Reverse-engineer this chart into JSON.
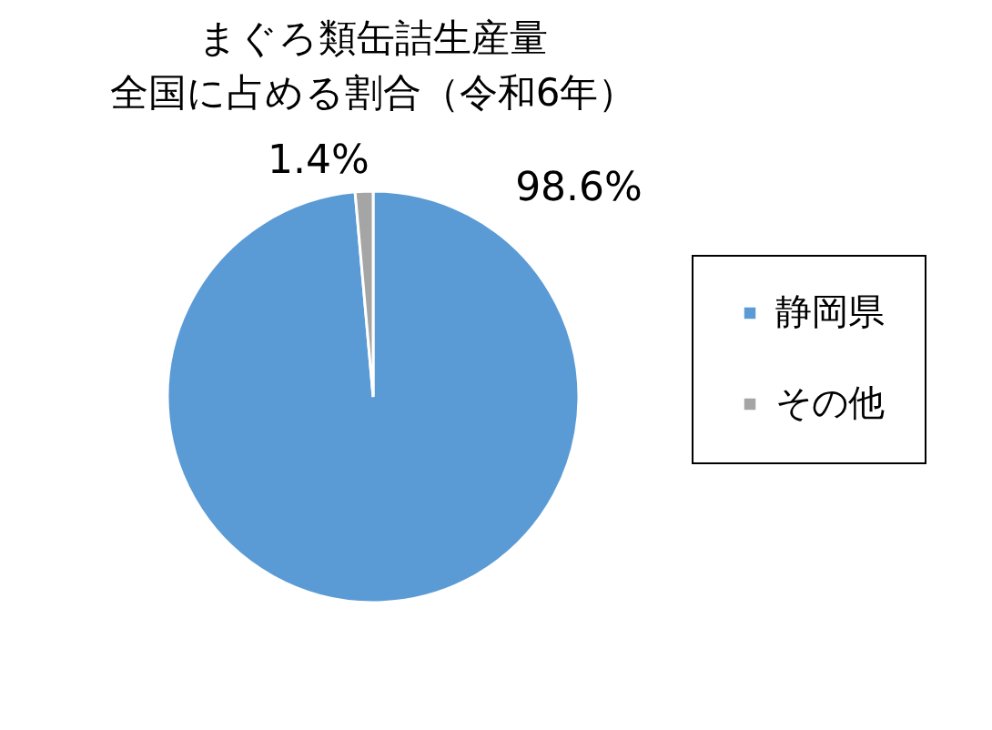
{
  "chart_data": {
    "type": "pie",
    "title": "まぐろ類缶詰生産量全国に占める割合（令和6年）",
    "categories": [
      "静岡県",
      "その他"
    ],
    "values": [
      98.6,
      1.4
    ],
    "colors": [
      "#5b9bd5",
      "#a5a5a5"
    ],
    "value_labels": [
      "98.6%",
      "1.4%"
    ],
    "legend": "right"
  }
}
